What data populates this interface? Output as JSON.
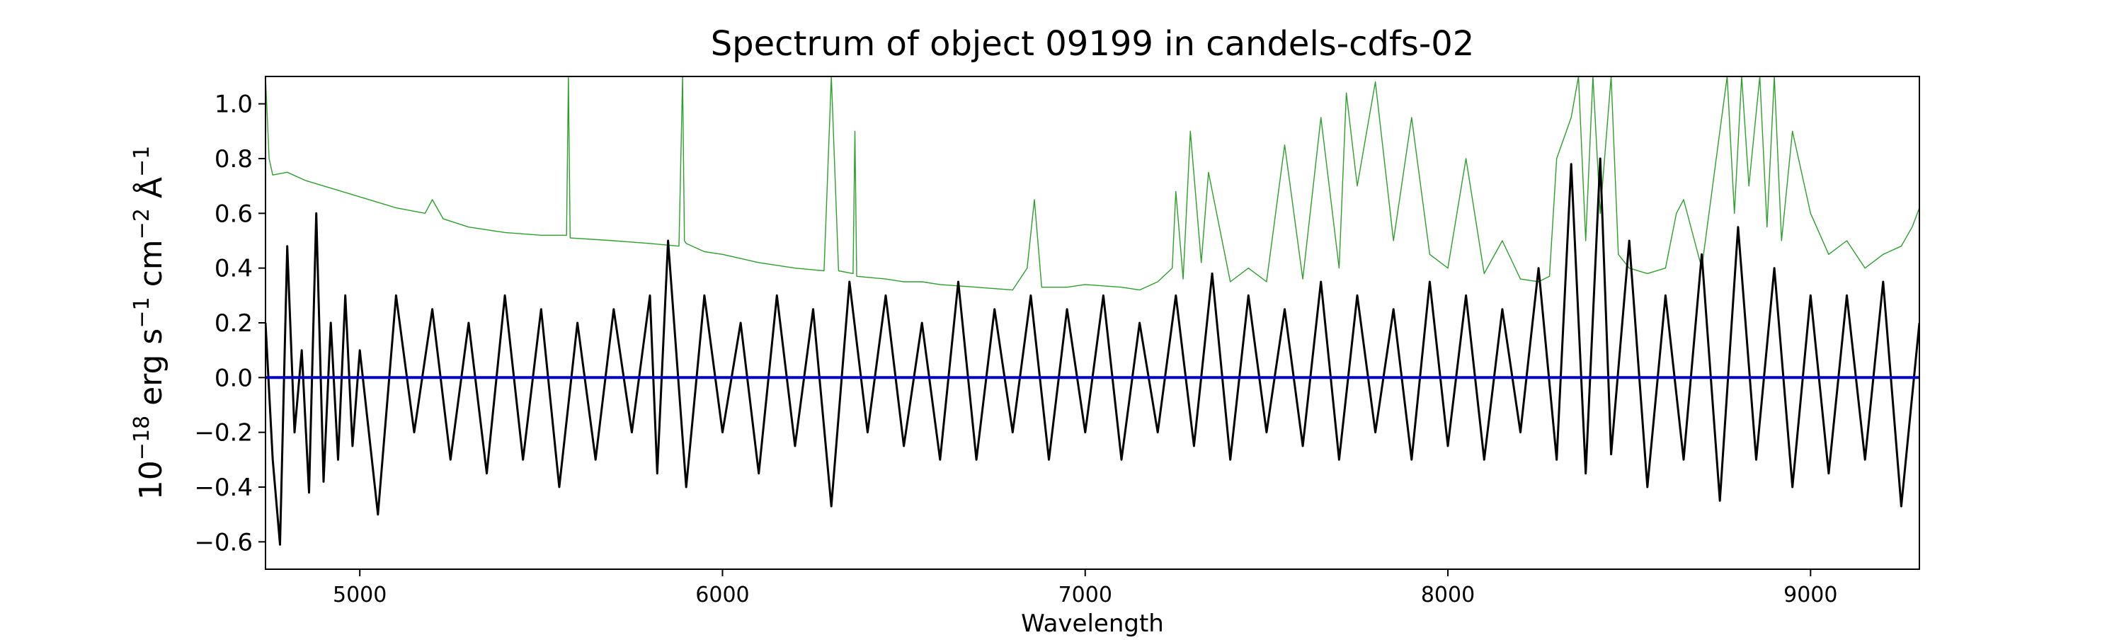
{
  "chart_data": {
    "type": "line",
    "title": "Spectrum of object 09199 in candels-cdfs-02",
    "xlabel": "Wavelength",
    "ylabel": {
      "prefix": "10",
      "exp1": "−18",
      "mid1": " erg s",
      "exp2": "−1",
      "mid2": " cm",
      "exp3": "−2",
      "mid3": " Å",
      "exp4": "−1"
    },
    "xlim": [
      4740,
      9300
    ],
    "ylim": [
      -0.7,
      1.1
    ],
    "xticks": [
      5000,
      6000,
      7000,
      8000,
      9000
    ],
    "xtick_labels": [
      "5000",
      "6000",
      "7000",
      "8000",
      "9000"
    ],
    "yticks": [
      -0.6,
      -0.4,
      -0.2,
      0.0,
      0.2,
      0.4,
      0.6,
      0.8,
      1.0
    ],
    "ytick_labels": [
      "−0.6",
      "−0.4",
      "−0.2",
      "0.0",
      "0.2",
      "0.4",
      "0.6",
      "0.8",
      "1.0"
    ],
    "grid": false,
    "legend": "none",
    "series": [
      {
        "color": "#000000",
        "role": "flux",
        "x": [
          4740,
          4760,
          4780,
          4800,
          4820,
          4840,
          4860,
          4880,
          4900,
          4920,
          4940,
          4960,
          4980,
          5000,
          5050,
          5100,
          5150,
          5200,
          5250,
          5300,
          5350,
          5400,
          5450,
          5500,
          5550,
          5600,
          5650,
          5700,
          5750,
          5800,
          5820,
          5850,
          5900,
          5950,
          6000,
          6050,
          6100,
          6150,
          6200,
          6250,
          6300,
          6350,
          6400,
          6450,
          6500,
          6550,
          6600,
          6650,
          6700,
          6750,
          6800,
          6850,
          6900,
          6950,
          7000,
          7050,
          7100,
          7150,
          7200,
          7250,
          7300,
          7350,
          7400,
          7450,
          7500,
          7550,
          7600,
          7650,
          7700,
          7750,
          7800,
          7850,
          7900,
          7950,
          8000,
          8050,
          8100,
          8150,
          8200,
          8250,
          8300,
          8340,
          8380,
          8420,
          8450,
          8500,
          8550,
          8600,
          8650,
          8700,
          8750,
          8800,
          8850,
          8900,
          8950,
          9000,
          9050,
          9100,
          9150,
          9200,
          9250,
          9300
        ],
        "y": [
          0.2,
          -0.3,
          -0.61,
          0.48,
          -0.2,
          0.1,
          -0.42,
          0.6,
          -0.38,
          0.2,
          -0.3,
          0.3,
          -0.25,
          0.1,
          -0.5,
          0.3,
          -0.2,
          0.25,
          -0.3,
          0.2,
          -0.35,
          0.3,
          -0.3,
          0.25,
          -0.4,
          0.2,
          -0.3,
          0.25,
          -0.2,
          0.3,
          -0.35,
          0.5,
          -0.4,
          0.3,
          -0.2,
          0.2,
          -0.35,
          0.3,
          -0.25,
          0.25,
          -0.47,
          0.35,
          -0.2,
          0.3,
          -0.25,
          0.2,
          -0.3,
          0.35,
          -0.3,
          0.25,
          -0.2,
          0.3,
          -0.3,
          0.25,
          -0.2,
          0.3,
          -0.3,
          0.2,
          -0.2,
          0.3,
          -0.25,
          0.38,
          -0.3,
          0.3,
          -0.2,
          0.25,
          -0.25,
          0.35,
          -0.3,
          0.3,
          -0.2,
          0.25,
          -0.3,
          0.35,
          -0.25,
          0.3,
          -0.3,
          0.25,
          -0.2,
          0.4,
          -0.3,
          0.78,
          -0.35,
          0.8,
          -0.28,
          0.5,
          -0.4,
          0.3,
          -0.3,
          0.45,
          -0.45,
          0.55,
          -0.3,
          0.4,
          -0.4,
          0.3,
          -0.35,
          0.3,
          -0.3,
          0.35,
          -0.47,
          0.2
        ]
      },
      {
        "color": "#2ca02c",
        "role": "error",
        "x": [
          4740,
          4750,
          4760,
          4800,
          4850,
          5000,
          5100,
          5180,
          5200,
          5230,
          5300,
          5400,
          5500,
          5570,
          5575,
          5580,
          5700,
          5800,
          5880,
          5890,
          5895,
          5900,
          5950,
          6000,
          6100,
          6200,
          6280,
          6300,
          6320,
          6360,
          6365,
          6370,
          6450,
          6500,
          6550,
          6600,
          6700,
          6800,
          6840,
          6860,
          6880,
          6950,
          7000,
          7100,
          7150,
          7200,
          7240,
          7250,
          7270,
          7290,
          7320,
          7340,
          7400,
          7450,
          7500,
          7550,
          7600,
          7650,
          7700,
          7720,
          7750,
          7800,
          7850,
          7900,
          7950,
          8000,
          8050,
          8100,
          8150,
          8200,
          8250,
          8280,
          8300,
          8340,
          8360,
          8380,
          8400,
          8420,
          8450,
          8470,
          8500,
          8550,
          8600,
          8630,
          8650,
          8700,
          8750,
          8770,
          8790,
          8810,
          8830,
          8860,
          8880,
          8900,
          8920,
          8950,
          9000,
          9050,
          9100,
          9150,
          9200,
          9250,
          9280,
          9300
        ],
        "y": [
          1.1,
          0.8,
          0.74,
          0.75,
          0.72,
          0.66,
          0.62,
          0.6,
          0.65,
          0.58,
          0.55,
          0.53,
          0.52,
          0.52,
          1.1,
          0.51,
          0.5,
          0.49,
          0.48,
          1.1,
          0.5,
          0.49,
          0.46,
          0.45,
          0.42,
          0.4,
          0.39,
          1.1,
          0.39,
          0.38,
          0.9,
          0.37,
          0.36,
          0.35,
          0.35,
          0.34,
          0.33,
          0.32,
          0.4,
          0.65,
          0.33,
          0.33,
          0.34,
          0.33,
          0.32,
          0.35,
          0.4,
          0.68,
          0.36,
          0.9,
          0.42,
          0.75,
          0.35,
          0.4,
          0.35,
          0.85,
          0.36,
          0.95,
          0.4,
          1.04,
          0.7,
          1.08,
          0.5,
          0.95,
          0.45,
          0.4,
          0.8,
          0.38,
          0.5,
          0.36,
          0.35,
          0.37,
          0.8,
          0.95,
          1.1,
          0.5,
          1.1,
          0.6,
          1.1,
          0.45,
          0.4,
          0.38,
          0.4,
          0.6,
          0.65,
          0.4,
          0.9,
          1.1,
          0.6,
          1.1,
          0.7,
          1.1,
          0.55,
          1.1,
          0.5,
          0.9,
          0.6,
          0.45,
          0.5,
          0.4,
          0.45,
          0.48,
          0.55,
          0.62
        ]
      },
      {
        "color": "#0000cc",
        "role": "zero-model",
        "x": [
          4740,
          9300
        ],
        "y": [
          0.0,
          0.0
        ]
      }
    ]
  }
}
